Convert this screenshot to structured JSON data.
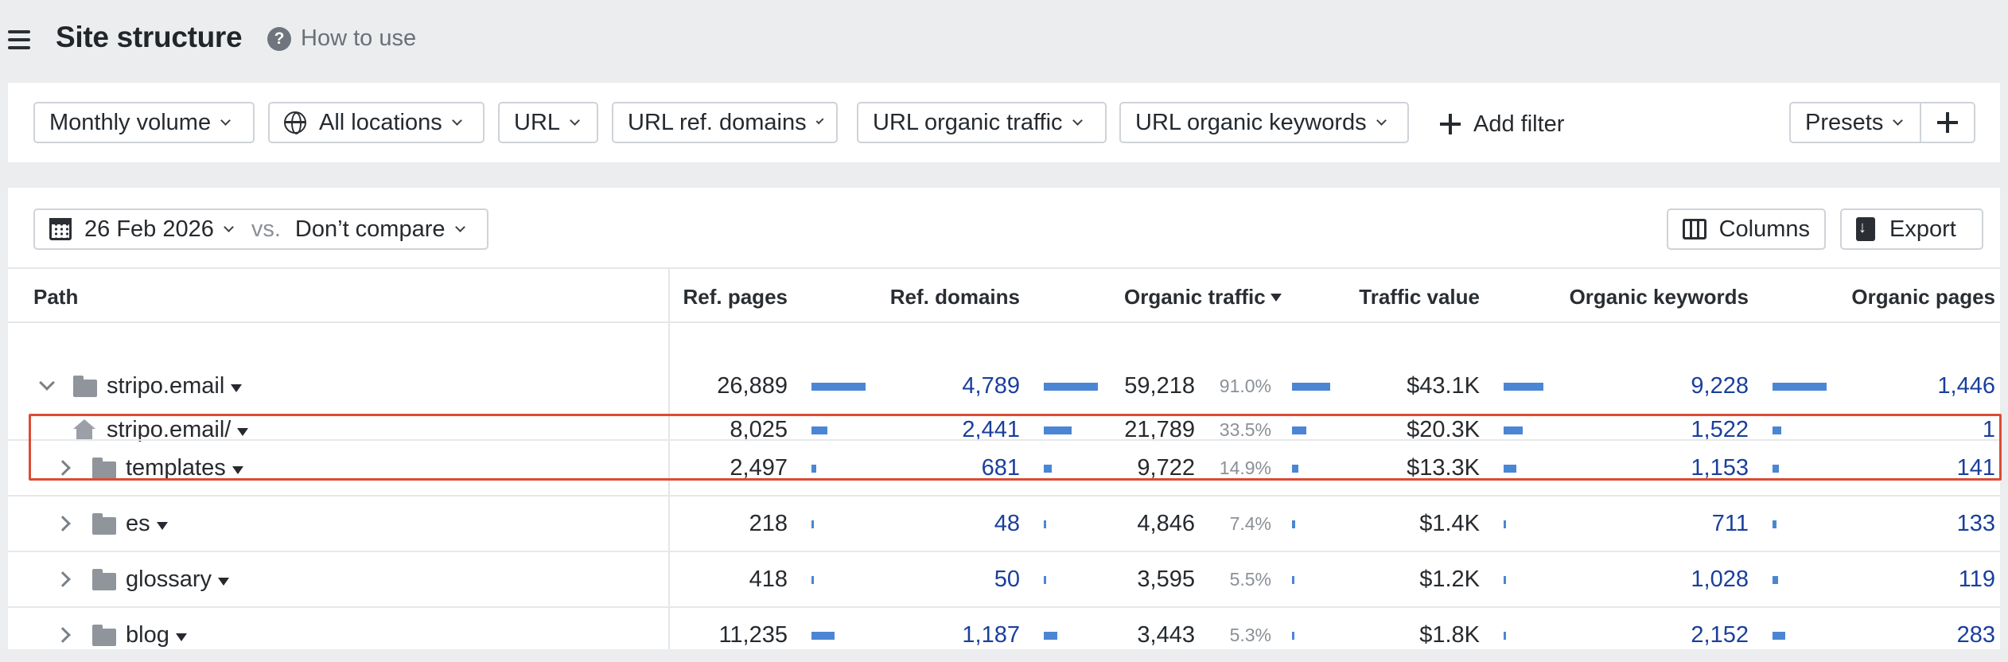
{
  "header": {
    "title": "Site structure",
    "how_to_use": "How to use"
  },
  "filters": {
    "monthly_volume": "Monthly volume",
    "all_locations": "All locations",
    "url": "URL",
    "url_ref_domains": "URL ref. domains",
    "url_organic_traffic": "URL organic traffic",
    "url_organic_keywords": "URL organic keywords",
    "add_filter": "Add filter",
    "presets": "Presets"
  },
  "toolbar": {
    "date": "26 Feb 2026",
    "vs": "vs.",
    "compare": "Don’t compare",
    "columns": "Columns",
    "export": "Export"
  },
  "columns": {
    "path": "Path",
    "ref_pages": "Ref. pages",
    "ref_domains": "Ref. domains",
    "organic_traffic": "Organic traffic",
    "traffic_value": "Traffic value",
    "organic_keywords": "Organic keywords",
    "organic_pages": "Organic pages"
  },
  "rows": [
    {
      "path": "stripo.email",
      "ref_pages": "26,889",
      "ref_pages_bar": 1.0,
      "ref_domains": "4,789",
      "ref_domains_bar": 1.0,
      "organic_traffic": "59,218",
      "traffic_pct": "91.0%",
      "traffic_bar": 1.0,
      "traffic_value": "$43.1K",
      "value_bar": 1.0,
      "organic_keywords": "9,228",
      "keywords_bar": 1.0,
      "organic_pages": "1,446"
    },
    {
      "path": "stripo.email/",
      "ref_pages": "8,025",
      "ref_pages_bar": 0.3,
      "ref_domains": "2,441",
      "ref_domains_bar": 0.51,
      "organic_traffic": "21,789",
      "traffic_pct": "33.5%",
      "traffic_bar": 0.37,
      "traffic_value": "$20.3K",
      "value_bar": 0.47,
      "organic_keywords": "1,522",
      "keywords_bar": 0.16,
      "organic_pages": "1"
    },
    {
      "path": "templates",
      "ref_pages": "2,497",
      "ref_pages_bar": 0.09,
      "ref_domains": "681",
      "ref_domains_bar": 0.14,
      "organic_traffic": "9,722",
      "traffic_pct": "14.9%",
      "traffic_bar": 0.16,
      "traffic_value": "$13.3K",
      "value_bar": 0.31,
      "organic_keywords": "1,153",
      "keywords_bar": 0.12,
      "organic_pages": "141"
    },
    {
      "path": "es",
      "ref_pages": "218",
      "ref_pages_bar": 0.01,
      "ref_domains": "48",
      "ref_domains_bar": 0.01,
      "organic_traffic": "4,846",
      "traffic_pct": "7.4%",
      "traffic_bar": 0.08,
      "traffic_value": "$1.4K",
      "value_bar": 0.03,
      "organic_keywords": "711",
      "keywords_bar": 0.08,
      "organic_pages": "133"
    },
    {
      "path": "glossary",
      "ref_pages": "418",
      "ref_pages_bar": 0.02,
      "ref_domains": "50",
      "ref_domains_bar": 0.01,
      "organic_traffic": "3,595",
      "traffic_pct": "5.5%",
      "traffic_bar": 0.06,
      "traffic_value": "$1.2K",
      "value_bar": 0.03,
      "organic_keywords": "1,028",
      "keywords_bar": 0.11,
      "organic_pages": "119"
    },
    {
      "path": "blog",
      "ref_pages": "11,235",
      "ref_pages_bar": 0.42,
      "ref_domains": "1,187",
      "ref_domains_bar": 0.25,
      "organic_traffic": "3,443",
      "traffic_pct": "5.3%",
      "traffic_bar": 0.06,
      "traffic_value": "$1.8K",
      "value_bar": 0.04,
      "organic_keywords": "2,152",
      "keywords_bar": 0.23,
      "organic_pages": "283"
    }
  ],
  "colors": {
    "accent_bar": "#4a86d4",
    "link": "#1a3f9c",
    "highlight": "#dd4b34"
  }
}
